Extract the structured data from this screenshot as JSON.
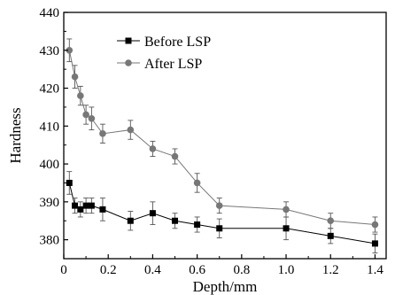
{
  "chart_data": {
    "type": "line",
    "title": "",
    "xlabel": "Depth/mm",
    "ylabel": "Hardness",
    "xlim": [
      0,
      1.45
    ],
    "ylim": [
      375,
      440
    ],
    "xticks": [
      0,
      0.2,
      0.4,
      0.6,
      0.8,
      1.0,
      1.2,
      1.4
    ],
    "xtick_labels": [
      "0",
      "0.2",
      "0.4",
      "0.6",
      "0.8",
      "1.0",
      "1.2",
      "1.4"
    ],
    "yticks": [
      380,
      390,
      400,
      410,
      420,
      430,
      440
    ],
    "ytick_labels": [
      "380",
      "390",
      "400",
      "410",
      "420",
      "430",
      "440"
    ],
    "grid": false,
    "legend_position": "top-center",
    "series": [
      {
        "name": "Before LSP",
        "marker": "square",
        "color": "#000000",
        "x": [
          0.025,
          0.05,
          0.075,
          0.1,
          0.125,
          0.175,
          0.3,
          0.4,
          0.5,
          0.6,
          0.7,
          1.0,
          1.2,
          1.4
        ],
        "y": [
          395,
          389,
          388,
          389,
          389,
          388,
          385,
          387,
          385,
          384,
          383,
          383,
          381,
          379
        ],
        "err": [
          3,
          2,
          2,
          2,
          2,
          3,
          2.5,
          3,
          2,
          2,
          2.5,
          3,
          2,
          2.5
        ]
      },
      {
        "name": "After LSP",
        "marker": "circle",
        "color": "#777777",
        "x": [
          0.025,
          0.05,
          0.075,
          0.1,
          0.125,
          0.175,
          0.3,
          0.4,
          0.5,
          0.6,
          0.7,
          1.0,
          1.2,
          1.4
        ],
        "y": [
          430,
          423,
          418,
          413,
          412,
          408,
          409,
          404,
          402,
          395,
          389,
          388,
          385,
          384
        ],
        "err": [
          3,
          3,
          2.5,
          2.5,
          3,
          2.5,
          2.5,
          2,
          2,
          2.5,
          2,
          2,
          2,
          2
        ]
      }
    ]
  }
}
